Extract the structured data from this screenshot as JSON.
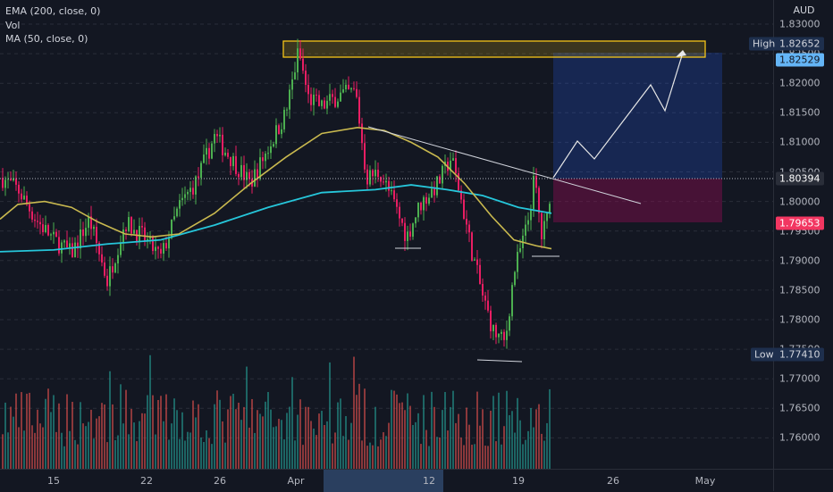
{
  "legend": {
    "ema": "EMA (200, close, 0)",
    "vol": "Vol",
    "ma": "MA (50, close, 0)"
  },
  "price_scale": {
    "currency": "AUD",
    "ticks": [
      "1.83000",
      "1.82500",
      "1.82000",
      "1.81500",
      "1.81000",
      "1.80500",
      "1.80000",
      "1.79500",
      "1.79000",
      "1.78500",
      "1.78000",
      "1.77500",
      "1.77000",
      "1.76500",
      "1.76000"
    ],
    "high_label": "High",
    "high_value": "1.82652",
    "target_value": "1.82529",
    "current_value": "1.80394",
    "stop_value": "1.79653",
    "low_label": "Low",
    "low_value": "1.77410"
  },
  "time_scale": {
    "ticks": [
      "15",
      "22",
      "26",
      "Apr",
      "12",
      "19",
      "26",
      "May"
    ]
  },
  "colors": {
    "background": "#131722",
    "up": "#26a69a",
    "up_candle": "#4caf50",
    "down_candle": "#e91e63",
    "ema_line": "#26c6da",
    "ma_line": "#c9b94f",
    "target_zone": "#2962ff",
    "stop_zone": "#880e4f",
    "resistance_box": "#f5c518",
    "high_tag": "#1e2f4d",
    "target_tag": "#64b5f6",
    "current_tag": "#2a2e39",
    "stop_tag": "#f23661",
    "low_tag": "#1e2f4d"
  },
  "chart_data": {
    "type": "candlestick",
    "instrument_quote_currency": "AUD",
    "indicators": [
      "EMA (200, close, 0)",
      "Vol",
      "MA (50, close, 0)"
    ],
    "x_ticks": [
      "15",
      "22",
      "26",
      "Apr",
      "12",
      "19",
      "26",
      "May"
    ],
    "ylim": [
      1.7545,
      1.8335
    ],
    "high": 1.82652,
    "low": 1.7741,
    "current": 1.80394,
    "target": 1.82529,
    "stop": 1.79653,
    "grid": true
  }
}
